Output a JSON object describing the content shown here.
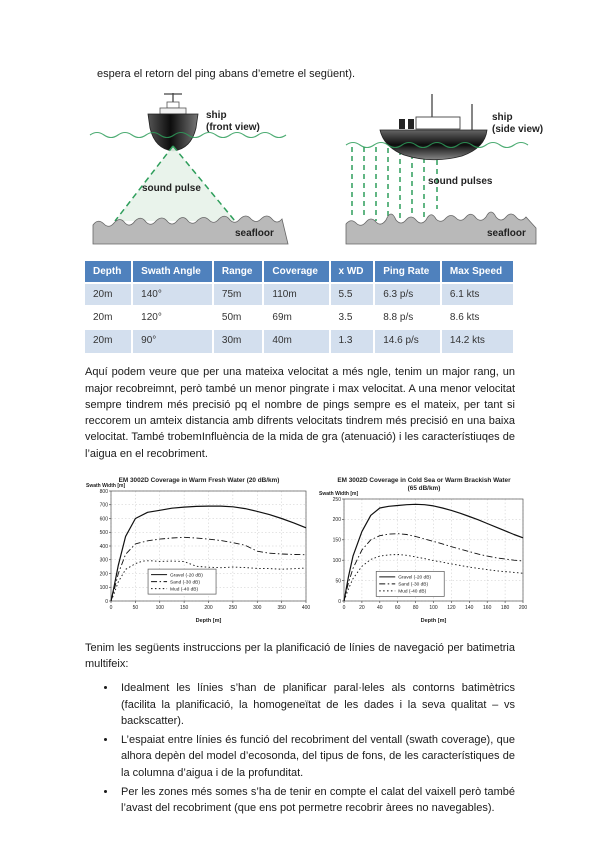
{
  "page": {
    "intro_text": "espera el retorn del ping abans d’emetre el següent).",
    "para_analysis": "Aquí podem veure que per una mateixa velocitat a més ngle, tenim un major rang, un major recobreimnt, però també un menor pingrate i max velocitat. A una menor velocitat sempre tindrem més precisió pq el nombre de pings sempre es el mateix, per tant si reccorem un amteix distancia amb difrents velocitats tindrem més precisió en una baixa velocitat. També trobemInfluència de la mida de gra (atenuació) i les característiuqes de l’aigua en el recobriment.",
    "para_instructions": "Tenim les següents instruccions per la planificació de línies de navegació per batimetria multifeix:",
    "bullets": [
      "Idealment les línies s’han de planificar paral·leles als contorns batimètrics (facilita la planificació, la homogeneïtat de les dades i la seva qualitat – vs backscatter).",
      "L’espaiat entre línies és funció del recobriment del ventall (swath coverage), que alhora depèn del model d’ecosonda, del tipus de fons, de les característiques de la columna d’aigua i de la profunditat.",
      "Per les zones més somes s’ha de tenir en compte el calat del vaixell però també l’avast del recobriment (que ens pot permetre recobrir àrees no navegables)."
    ]
  },
  "diagrams": {
    "accent_green": "#2e9e5b",
    "beam_fill": "#e7f2e9",
    "front": {
      "ship_label": "ship",
      "view_label": "(front view)",
      "pulse_label": "sound pulse",
      "seafloor_label": "seafloor"
    },
    "side": {
      "ship_label": "ship",
      "view_label": "(side view)",
      "pulse_label": "sound pulses",
      "seafloor_label": "seafloor"
    }
  },
  "table": {
    "header_bg": "#4f81bd",
    "row_alt_bg": "#d3dfee",
    "headers": [
      "Depth",
      "Swath Angle",
      "Range",
      "Coverage",
      "x WD",
      "Ping Rate",
      "Max Speed"
    ],
    "rows": [
      [
        "20m",
        "140°",
        "75m",
        "110m",
        "5.5",
        "6.3 p/s",
        "6.1 kts"
      ],
      [
        "20m",
        "120°",
        "50m",
        "69m",
        "3.5",
        "8.8 p/s",
        "8.6 kts"
      ],
      [
        "20m",
        "90°",
        "30m",
        "40m",
        "1.3",
        "14.6 p/s",
        "14.2 kts"
      ]
    ]
  },
  "chart_data": [
    {
      "type": "line",
      "title": "EM 3002D Coverage in Warm Fresh Water (20 dB/km)",
      "subtitle": "",
      "xlabel": "Depth [m]",
      "ylabel": "Swath Width [m]",
      "xlim": [
        0,
        400
      ],
      "ylim": [
        0,
        800
      ],
      "xticks": [
        0,
        50,
        100,
        150,
        200,
        250,
        300,
        350,
        400
      ],
      "yticks": [
        0,
        100,
        200,
        300,
        400,
        500,
        600,
        700,
        800
      ],
      "grid": true,
      "legend": {
        "x": 0.19,
        "y": 0.71
      },
      "series": [
        {
          "name": "Gravel (-20 dB)",
          "dash": "",
          "points": [
            [
              0,
              0
            ],
            [
              5,
              80
            ],
            [
              15,
              260
            ],
            [
              30,
              470
            ],
            [
              50,
              600
            ],
            [
              75,
              645
            ],
            [
              100,
              660
            ],
            [
              125,
              675
            ],
            [
              150,
              683
            ],
            [
              175,
              688
            ],
            [
              200,
              690
            ],
            [
              225,
              690
            ],
            [
              250,
              685
            ],
            [
              275,
              672
            ],
            [
              300,
              652
            ],
            [
              325,
              628
            ],
            [
              350,
              600
            ],
            [
              375,
              568
            ],
            [
              400,
              532
            ]
          ]
        },
        {
          "name": "Sand  (-30 dB)",
          "dash": "6 2.5 1.5 2.5",
          "points": [
            [
              0,
              0
            ],
            [
              5,
              60
            ],
            [
              15,
              200
            ],
            [
              30,
              340
            ],
            [
              50,
              415
            ],
            [
              75,
              438
            ],
            [
              100,
              450
            ],
            [
              125,
              458
            ],
            [
              150,
              463
            ],
            [
              175,
              458
            ],
            [
              200,
              450
            ],
            [
              225,
              440
            ],
            [
              250,
              425
            ],
            [
              275,
              405
            ],
            [
              300,
              362
            ],
            [
              325,
              348
            ],
            [
              350,
              342
            ],
            [
              375,
              338
            ],
            [
              400,
              337
            ]
          ]
        },
        {
          "name": "Mud   (-40 dB)",
          "dash": "1.5 2.4",
          "points": [
            [
              0,
              0
            ],
            [
              5,
              40
            ],
            [
              15,
              140
            ],
            [
              30,
              230
            ],
            [
              50,
              272
            ],
            [
              65,
              290
            ],
            [
              80,
              293
            ],
            [
              100,
              288
            ],
            [
              125,
              290
            ],
            [
              150,
              287
            ],
            [
              175,
              252
            ],
            [
              200,
              246
            ],
            [
              225,
              242
            ],
            [
              250,
              247
            ],
            [
              275,
              243
            ],
            [
              300,
              237
            ],
            [
              325,
              236
            ],
            [
              350,
              231
            ],
            [
              375,
              235
            ],
            [
              400,
              240
            ]
          ]
        }
      ]
    },
    {
      "type": "line",
      "title": "EM 3002D Coverage in Cold Sea or Warm Brackish Water",
      "subtitle": "(65 dB/km)",
      "xlabel": "Depth [m]",
      "ylabel": "Swath Width [m]",
      "xlim": [
        0,
        200
      ],
      "ylim": [
        0,
        250
      ],
      "xticks": [
        0,
        20,
        40,
        60,
        80,
        100,
        120,
        140,
        160,
        180,
        200
      ],
      "yticks": [
        0,
        50,
        100,
        150,
        200,
        250
      ],
      "grid": true,
      "legend": {
        "x": 0.18,
        "y": 0.71
      },
      "series": [
        {
          "name": "Gravel (-20 dB)",
          "dash": "",
          "points": [
            [
              0,
              0
            ],
            [
              5,
              60
            ],
            [
              10,
              110
            ],
            [
              20,
              170
            ],
            [
              30,
              210
            ],
            [
              40,
              228
            ],
            [
              50,
              232
            ],
            [
              60,
              234
            ],
            [
              70,
              236
            ],
            [
              80,
              237
            ],
            [
              90,
              236
            ],
            [
              100,
              233
            ],
            [
              110,
              228
            ],
            [
              120,
              222
            ],
            [
              130,
              215
            ],
            [
              140,
              207
            ],
            [
              150,
              199
            ],
            [
              160,
              190
            ],
            [
              170,
              181
            ],
            [
              180,
              172
            ],
            [
              190,
              163
            ],
            [
              200,
              155
            ]
          ]
        },
        {
          "name": "Sand  (-30 dB)",
          "dash": "6 2.5 1.5 2.5",
          "points": [
            [
              0,
              0
            ],
            [
              5,
              45
            ],
            [
              10,
              80
            ],
            [
              20,
              125
            ],
            [
              30,
              150
            ],
            [
              40,
              160
            ],
            [
              50,
              164
            ],
            [
              60,
              165
            ],
            [
              70,
              163
            ],
            [
              80,
              158
            ],
            [
              90,
              152
            ],
            [
              100,
              146
            ],
            [
              110,
              140
            ],
            [
              120,
              133
            ],
            [
              130,
              127
            ],
            [
              140,
              121
            ],
            [
              150,
              115
            ],
            [
              160,
              110
            ],
            [
              170,
              106
            ],
            [
              180,
              103
            ],
            [
              190,
              100
            ],
            [
              200,
              98
            ]
          ]
        },
        {
          "name": "Mud   (-40 dB)",
          "dash": "1.5 2.4",
          "points": [
            [
              0,
              0
            ],
            [
              5,
              30
            ],
            [
              10,
              55
            ],
            [
              20,
              85
            ],
            [
              30,
              102
            ],
            [
              40,
              110
            ],
            [
              50,
              113
            ],
            [
              60,
              114
            ],
            [
              70,
              112
            ],
            [
              80,
              108
            ],
            [
              90,
              104
            ],
            [
              100,
              99
            ],
            [
              110,
              95
            ],
            [
              120,
              91
            ],
            [
              130,
              87
            ],
            [
              140,
              83
            ],
            [
              150,
              80
            ],
            [
              160,
              77
            ],
            [
              170,
              74
            ],
            [
              180,
              72
            ],
            [
              190,
              70
            ],
            [
              200,
              68
            ]
          ]
        }
      ]
    }
  ]
}
